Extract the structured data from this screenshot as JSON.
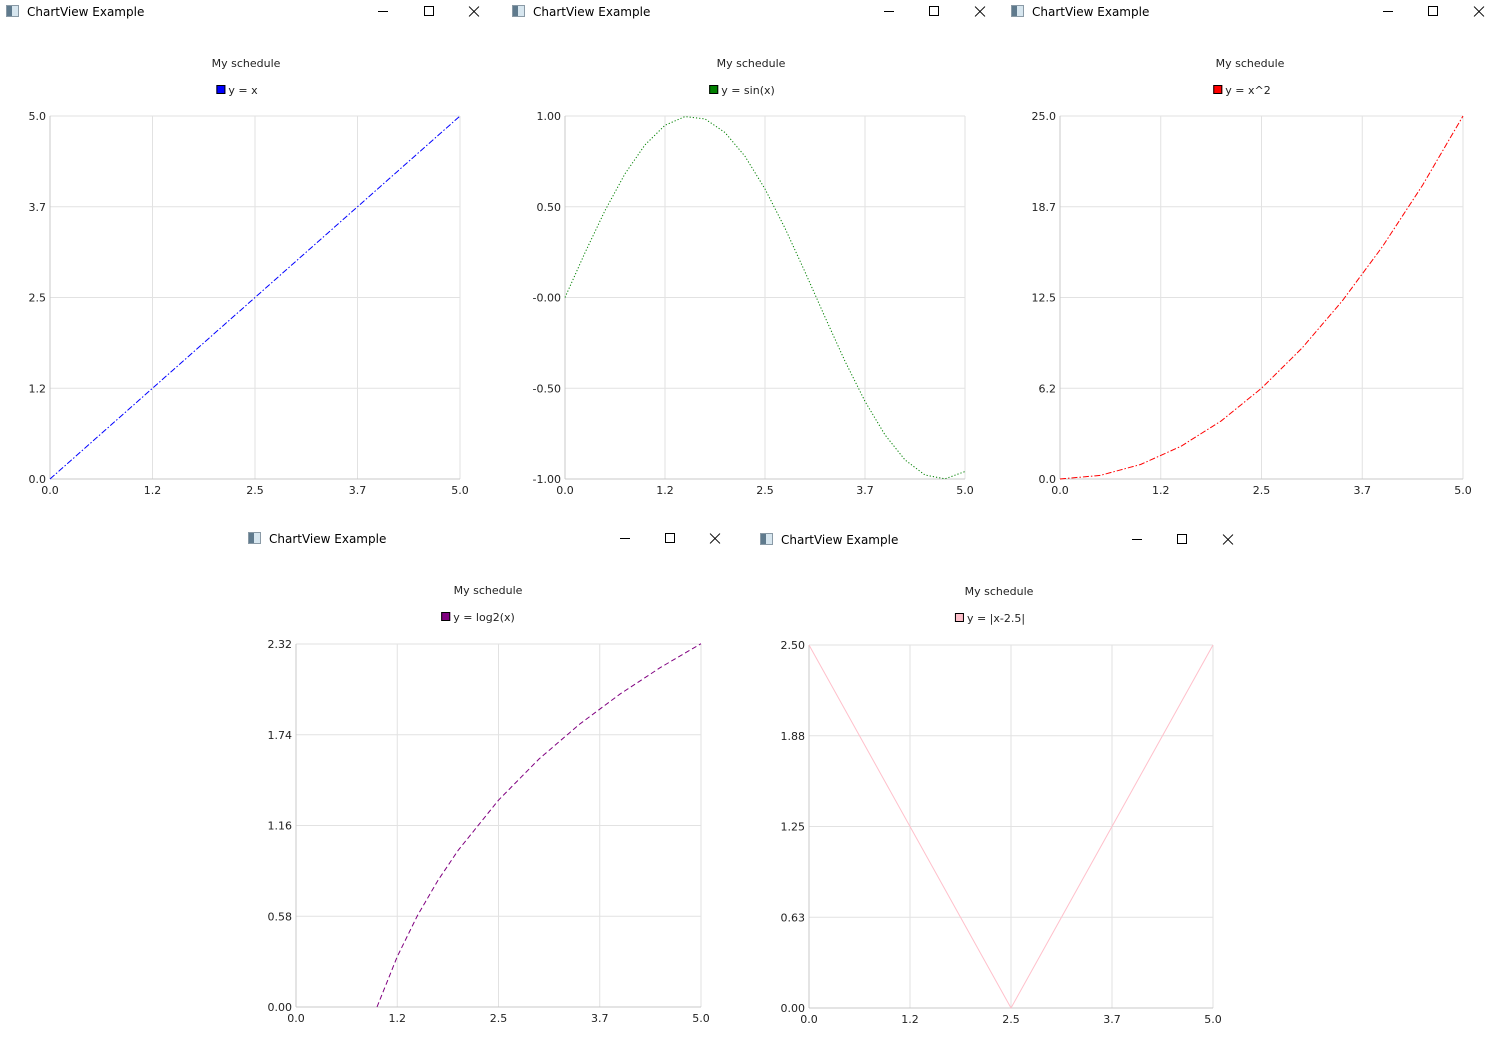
{
  "windows": [
    {
      "title": "ChartView Example",
      "chart_data": {
        "type": "line",
        "title": "My schedule",
        "xlim": [
          0,
          5
        ],
        "ylim": [
          0,
          5
        ],
        "x_ticks": [
          "0.0",
          "1.2",
          "2.5",
          "3.7",
          "5.0"
        ],
        "y_ticks": [
          "0.0",
          "1.2",
          "2.5",
          "3.7",
          "5.0"
        ],
        "grid": true,
        "legend_position": "top",
        "series": [
          {
            "name": "y = x",
            "color": "#0000ff",
            "line_style": "dash-dot",
            "x": [
              0,
              0.5,
              1,
              1.5,
              2,
              2.5,
              3,
              3.5,
              4,
              4.5,
              5
            ],
            "y": [
              0,
              0.5,
              1,
              1.5,
              2,
              2.5,
              3,
              3.5,
              4,
              4.5,
              5
            ]
          }
        ]
      }
    },
    {
      "title": "ChartView Example",
      "chart_data": {
        "type": "line",
        "title": "My schedule",
        "xlim": [
          0,
          5
        ],
        "ylim": [
          -1,
          1
        ],
        "x_ticks": [
          "0.0",
          "1.2",
          "2.5",
          "3.7",
          "5.0"
        ],
        "y_ticks": [
          "-1.00",
          "-0.50",
          "-0.00",
          "0.50",
          "1.00"
        ],
        "grid": true,
        "legend_position": "top",
        "series": [
          {
            "name": "y = sin(x)",
            "color": "#008000",
            "line_style": "dotted",
            "x": [
              0,
              0.25,
              0.5,
              0.75,
              1,
              1.25,
              1.5,
              1.75,
              2,
              2.25,
              2.5,
              2.75,
              3,
              3.25,
              3.5,
              3.75,
              4,
              4.25,
              4.5,
              4.75,
              5
            ],
            "y": [
              0,
              0.247,
              0.479,
              0.682,
              0.841,
              0.949,
              0.997,
              0.984,
              0.909,
              0.778,
              0.598,
              0.382,
              0.141,
              -0.108,
              -0.351,
              -0.572,
              -0.757,
              -0.895,
              -0.978,
              -0.999,
              -0.959
            ]
          }
        ]
      }
    },
    {
      "title": "ChartView Example",
      "chart_data": {
        "type": "line",
        "title": "My schedule",
        "xlim": [
          0,
          5
        ],
        "ylim": [
          0,
          25
        ],
        "x_ticks": [
          "0.0",
          "1.2",
          "2.5",
          "3.7",
          "5.0"
        ],
        "y_ticks": [
          "0.0",
          "6.2",
          "12.5",
          "18.7",
          "25.0"
        ],
        "grid": true,
        "legend_position": "top",
        "series": [
          {
            "name": "y = x^2",
            "color": "#ff0000",
            "line_style": "dash-dot",
            "x": [
              0,
              0.5,
              1,
              1.5,
              2,
              2.5,
              3,
              3.5,
              4,
              4.5,
              5
            ],
            "y": [
              0,
              0.25,
              1,
              2.25,
              4,
              6.25,
              9,
              12.25,
              16,
              20.25,
              25
            ]
          }
        ]
      }
    },
    {
      "title": "ChartView Example",
      "chart_data": {
        "type": "line",
        "title": "My schedule",
        "xlim": [
          0,
          5
        ],
        "ylim": [
          0,
          2.32
        ],
        "x_ticks": [
          "0.0",
          "1.2",
          "2.5",
          "3.7",
          "5.0"
        ],
        "y_ticks": [
          "0.00",
          "0.58",
          "1.16",
          "1.74",
          "2.32"
        ],
        "grid": true,
        "legend_position": "top",
        "series": [
          {
            "name": "y = log2(x)",
            "color": "#800080",
            "line_style": "dashed",
            "x": [
              1,
              1.25,
              1.5,
              1.75,
              2,
              2.5,
              3,
              3.5,
              4,
              4.5,
              5
            ],
            "y": [
              0,
              0.322,
              0.585,
              0.807,
              1,
              1.322,
              1.585,
              1.807,
              2,
              2.17,
              2.322
            ]
          }
        ]
      }
    },
    {
      "title": "ChartView Example",
      "chart_data": {
        "type": "line",
        "title": "My schedule",
        "xlim": [
          0,
          5
        ],
        "ylim": [
          0,
          2.5
        ],
        "x_ticks": [
          "0.0",
          "1.2",
          "2.5",
          "3.7",
          "5.0"
        ],
        "y_ticks": [
          "0.00",
          "0.63",
          "1.25",
          "1.88",
          "2.50"
        ],
        "grid": true,
        "legend_position": "top",
        "series": [
          {
            "name": "y = |x-2.5|",
            "color": "#ffc0cb",
            "line_style": "solid",
            "x": [
              0,
              2.5,
              5
            ],
            "y": [
              2.5,
              0,
              2.5
            ]
          }
        ]
      }
    }
  ]
}
